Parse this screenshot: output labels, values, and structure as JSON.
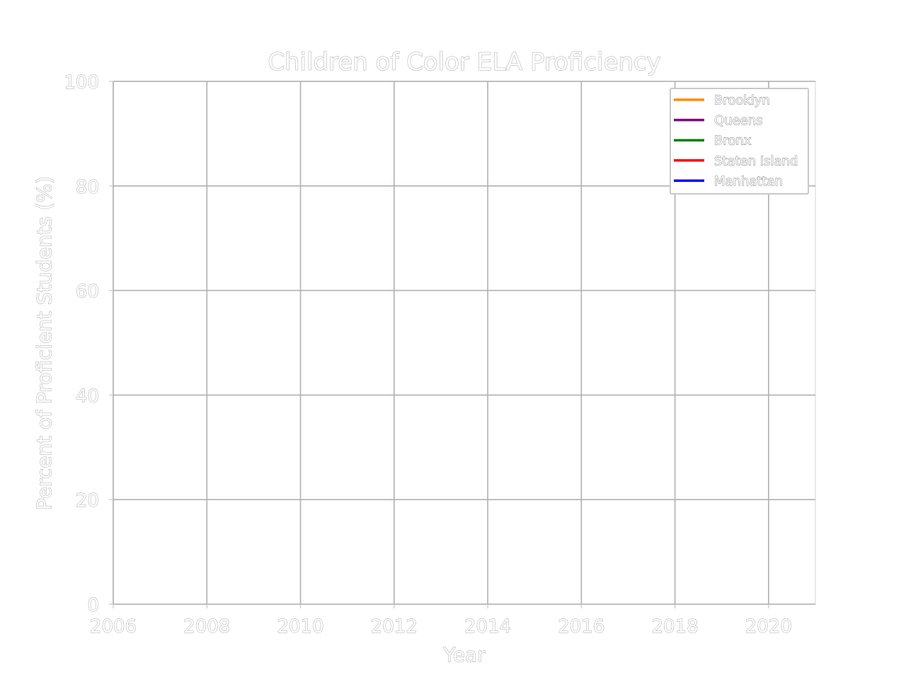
{
  "chart_data": {
    "type": "line",
    "title": "Children of Color ELA Proficiency",
    "xlabel": "Year",
    "ylabel": "Percent of Proficient Students (%)",
    "xlim": [
      2006,
      2021
    ],
    "ylim": [
      0,
      100
    ],
    "x_ticks": [
      "2006",
      "2008",
      "2010",
      "2012",
      "2014",
      "2016",
      "2018",
      "2020"
    ],
    "y_ticks": [
      "0",
      "20",
      "40",
      "60",
      "80",
      "100"
    ],
    "grid": true,
    "legend_position": "top-right",
    "series": [
      {
        "name": "Brooklyn",
        "color": "#ff8c00",
        "x": [],
        "y": []
      },
      {
        "name": "Queens",
        "color": "#800080",
        "x": [],
        "y": []
      },
      {
        "name": "Bronx",
        "color": "#008000",
        "x": [],
        "y": []
      },
      {
        "name": "Staten Island",
        "color": "#ff0000",
        "x": [],
        "y": []
      },
      {
        "name": "Manhattan",
        "color": "#0000ff",
        "x": [],
        "y": []
      }
    ]
  }
}
